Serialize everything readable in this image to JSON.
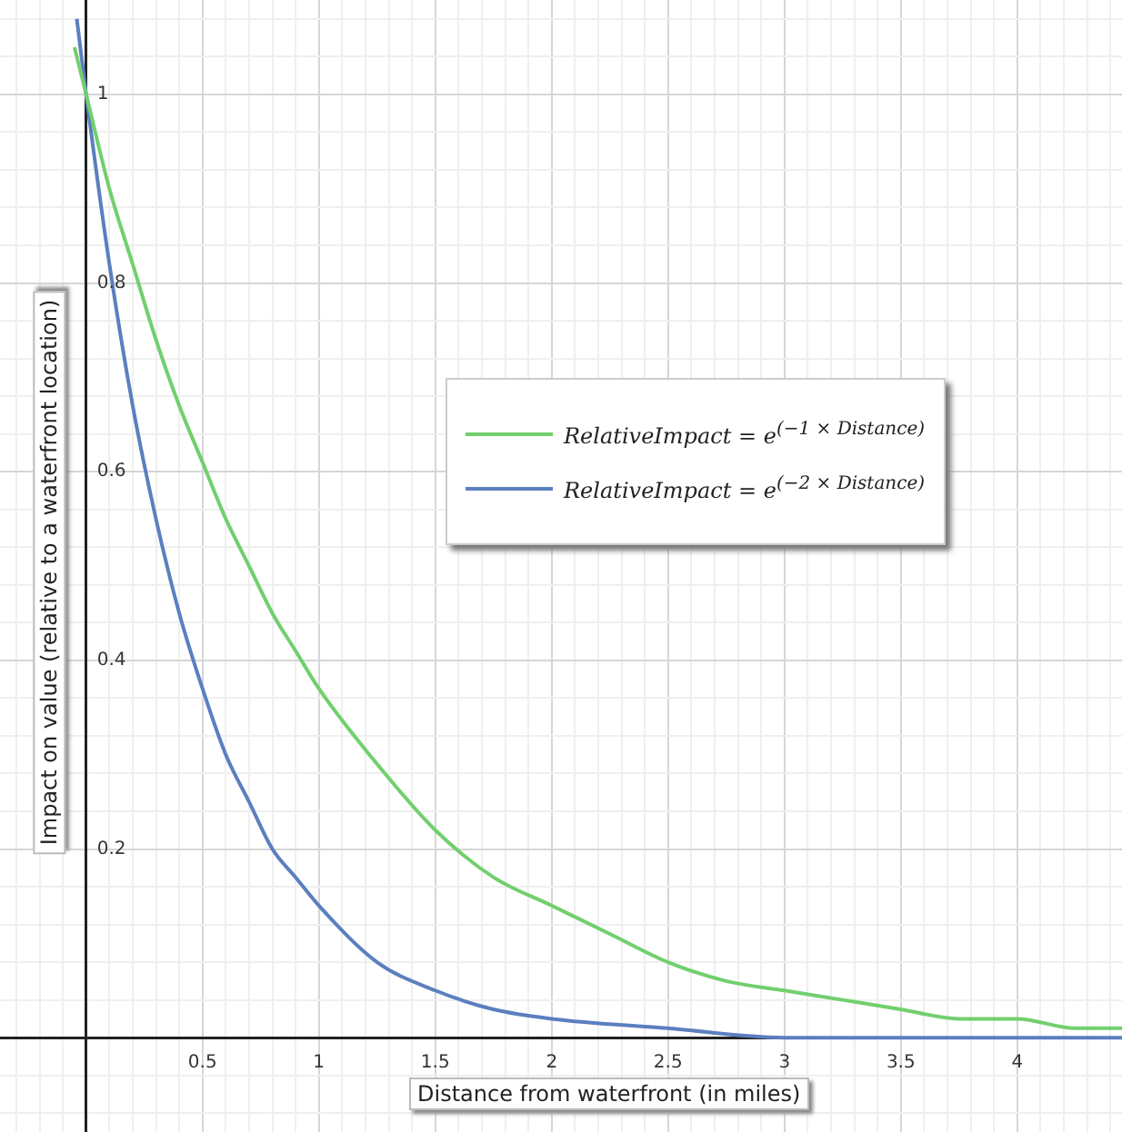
{
  "chart_data": {
    "type": "line",
    "xlabel": "Distance from waterfront (in miles)",
    "ylabel": "Impact on value (relative to a waterfront location)",
    "xlim": [
      -0.37,
      4.45
    ],
    "ylim": [
      -0.1,
      1.1
    ],
    "xticks": [
      {
        "value": -0.3,
        "label": null
      },
      {
        "value": -0.2,
        "label": null
      },
      {
        "value": -0.1,
        "label": null
      },
      {
        "value": 0,
        "label": null
      },
      {
        "value": 0.1,
        "label": null
      },
      {
        "value": 0.2,
        "label": null
      },
      {
        "value": 0.3,
        "label": null
      },
      {
        "value": 0.4,
        "label": null
      },
      0.5,
      {
        "value": 0.6,
        "label": null
      },
      {
        "value": 0.7,
        "label": null
      },
      {
        "value": 0.8,
        "label": null
      },
      {
        "value": 0.9,
        "label": null
      },
      1,
      {
        "value": 1.1,
        "label": null
      },
      {
        "value": 1.2,
        "label": null
      },
      {
        "value": 1.3,
        "label": null
      },
      {
        "value": 1.4,
        "label": null
      },
      1.5,
      {
        "value": 1.6,
        "label": null
      },
      {
        "value": 1.7,
        "label": null
      },
      {
        "value": 1.8,
        "label": null
      },
      {
        "value": 1.9,
        "label": null
      },
      2,
      {
        "value": 2.1,
        "label": null
      },
      {
        "value": 2.2,
        "label": null
      },
      {
        "value": 2.3,
        "label": null
      },
      {
        "value": 2.4,
        "label": null
      },
      2.5,
      {
        "value": 2.6,
        "label": null
      },
      {
        "value": 2.7,
        "label": null
      },
      {
        "value": 2.8,
        "label": null
      },
      {
        "value": 2.9,
        "label": null
      },
      3,
      {
        "value": 3.1,
        "label": null
      },
      {
        "value": 3.2,
        "label": null
      },
      {
        "value": 3.3,
        "label": null
      },
      {
        "value": 3.4,
        "label": null
      },
      3.5,
      {
        "value": 3.6,
        "label": null
      },
      {
        "value": 3.7,
        "label": null
      },
      {
        "value": 3.8,
        "label": null
      },
      {
        "value": 3.9,
        "label": null
      },
      4,
      {
        "value": 4.1,
        "label": null
      },
      {
        "value": 4.2,
        "label": null
      },
      {
        "value": 4.3,
        "label": null
      },
      {
        "value": 4.4,
        "label": null
      }
    ],
    "yticks": [
      {
        "value": -0.08,
        "label": null
      },
      {
        "value": -0.04,
        "label": null
      },
      {
        "value": 0,
        "label": null
      },
      {
        "value": 0.04,
        "label": null
      },
      {
        "value": 0.08,
        "label": null
      },
      {
        "value": 0.12,
        "label": null
      },
      {
        "value": 0.16,
        "label": null
      },
      0.2,
      {
        "value": 0.24,
        "label": null
      },
      {
        "value": 0.28,
        "label": null
      },
      {
        "value": 0.32,
        "label": null
      },
      {
        "value": 0.36,
        "label": null
      },
      0.4,
      {
        "value": 0.44,
        "label": null
      },
      {
        "value": 0.48,
        "label": null
      },
      {
        "value": 0.52,
        "label": null
      },
      {
        "value": 0.56,
        "label": null
      },
      0.6,
      {
        "value": 0.64,
        "label": null
      },
      {
        "value": 0.68,
        "label": null
      },
      {
        "value": 0.72,
        "label": null
      },
      {
        "value": 0.76,
        "label": null
      },
      0.8,
      {
        "value": 0.84,
        "label": null
      },
      {
        "value": 0.88,
        "label": null
      },
      {
        "value": 0.92,
        "label": null
      },
      {
        "value": 0.96,
        "label": null
      },
      1,
      {
        "value": 1.04,
        "label": null
      },
      {
        "value": 1.08,
        "label": null
      }
    ],
    "grid": true,
    "legend": "right",
    "marker": "none",
    "line_style": "solid",
    "series": [
      {
        "name": "RelativeImpact = e$^{(−1 × Distance)}$",
        "color": "#72cf6e",
        "x": [
          -0.05,
          0,
          0.1,
          0.2,
          0.3,
          0.4,
          0.5,
          0.6,
          0.7,
          0.8,
          0.9,
          1,
          1.25,
          1.5,
          1.75,
          2,
          2.25,
          2.5,
          2.75,
          3,
          3.25,
          3.5,
          3.75,
          4,
          4.25,
          4.45
        ],
        "values": [
          1.05,
          1,
          0.9,
          0.82,
          0.74,
          0.67,
          0.61,
          0.55,
          0.5,
          0.45,
          0.41,
          0.37,
          0.29,
          0.22,
          0.17,
          0.14,
          0.11,
          0.08,
          0.06,
          0.05,
          0.04,
          0.03,
          0.02,
          0.02,
          0.01,
          0.01
        ]
      },
      {
        "name": "RelativeImpact = e$^{(−2 × Distance)}$",
        "color": "#5b7fbf",
        "x": [
          -0.04,
          0,
          0.1,
          0.2,
          0.3,
          0.4,
          0.5,
          0.6,
          0.7,
          0.8,
          0.9,
          1,
          1.25,
          1.5,
          1.75,
          2,
          2.5,
          3,
          3.5,
          4,
          4.45
        ],
        "values": [
          1.08,
          1,
          0.82,
          0.67,
          0.55,
          0.45,
          0.37,
          0.3,
          0.25,
          0.2,
          0.17,
          0.14,
          0.08,
          0.05,
          0.03,
          0.02,
          0.01,
          0,
          0,
          0,
          0
        ]
      }
    ]
  }
}
